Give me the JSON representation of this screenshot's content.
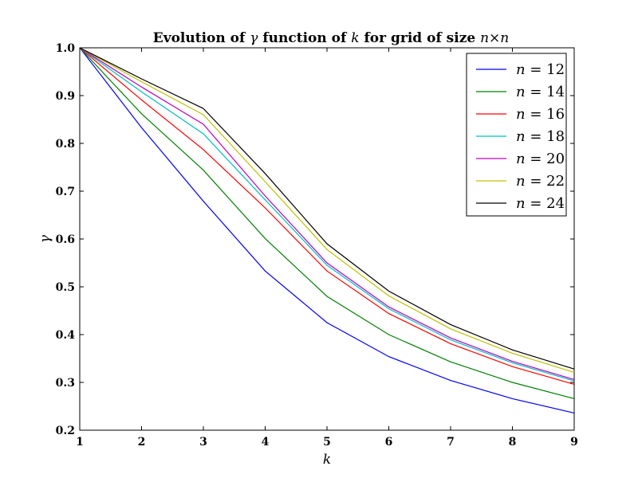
{
  "chart_data": {
    "type": "line",
    "title": {
      "prefix": "Evolution of ",
      "var": "γ",
      "middle": " function of ",
      "var2": "k",
      "suffix": " for grid of size ",
      "size": "n×n"
    },
    "xlabel": "k",
    "ylabel": "γ",
    "xlim": [
      1,
      9
    ],
    "ylim": [
      0.2,
      1.0
    ],
    "x": [
      1,
      2,
      3,
      4,
      5,
      6,
      7,
      8,
      9
    ],
    "xticks": [
      "1",
      "2",
      "3",
      "4",
      "5",
      "6",
      "7",
      "8",
      "9"
    ],
    "yticks": [
      "0.2",
      "0.3",
      "0.4",
      "0.5",
      "0.6",
      "0.7",
      "0.8",
      "0.9",
      "1.0"
    ],
    "legend_position": "top-right",
    "grid": false,
    "series": [
      {
        "name": "n = 12",
        "var": "n",
        "value": "12",
        "color": "#0000ff",
        "values": [
          1.0,
          0.833,
          0.679,
          0.533,
          0.425,
          0.354,
          0.304,
          0.266,
          0.236
        ]
      },
      {
        "name": "n = 14",
        "var": "n",
        "value": "14",
        "color": "#008000",
        "values": [
          1.0,
          0.862,
          0.744,
          0.601,
          0.48,
          0.4,
          0.343,
          0.3,
          0.266
        ]
      },
      {
        "name": "n = 16",
        "var": "n",
        "value": "16",
        "color": "#ff0000",
        "values": [
          1.0,
          0.891,
          0.787,
          0.665,
          0.533,
          0.444,
          0.381,
          0.333,
          0.296
        ]
      },
      {
        "name": "n = 18",
        "var": "n",
        "value": "18",
        "color": "#00bfbf",
        "values": [
          1.0,
          0.908,
          0.82,
          0.682,
          0.545,
          0.454,
          0.389,
          0.341,
          0.303
        ]
      },
      {
        "name": "n = 20",
        "var": "n",
        "value": "20",
        "color": "#bf00bf",
        "values": [
          1.0,
          0.918,
          0.84,
          0.69,
          0.55,
          0.458,
          0.393,
          0.344,
          0.306
        ]
      },
      {
        "name": "n = 22",
        "var": "n",
        "value": "22",
        "color": "#bfbf00",
        "values": [
          1.0,
          0.929,
          0.86,
          0.72,
          0.578,
          0.481,
          0.412,
          0.361,
          0.321
        ]
      },
      {
        "name": "n = 24",
        "var": "n",
        "value": "24",
        "color": "#000000",
        "values": [
          1.0,
          0.935,
          0.873,
          0.737,
          0.59,
          0.491,
          0.421,
          0.368,
          0.328
        ]
      }
    ]
  }
}
